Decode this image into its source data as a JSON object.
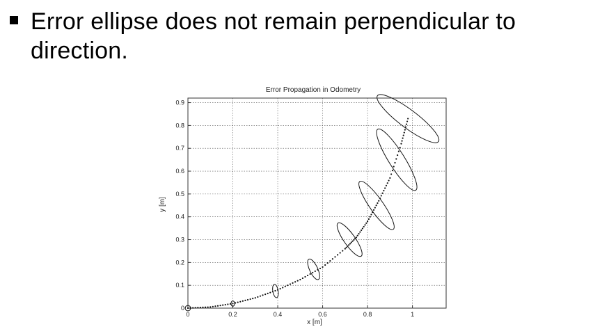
{
  "slide": {
    "bullet_text": "Error ellipse does not remain perpendicular to direction."
  },
  "chart_data": {
    "type": "scatter",
    "title": "Error Propagation in Odometry",
    "xlabel": "x [m]",
    "ylabel": "y [m]",
    "xlim": [
      0,
      1.15
    ],
    "ylim": [
      0,
      0.92
    ],
    "x_ticks": [
      0,
      0.2,
      0.4,
      0.6,
      0.8,
      1
    ],
    "x_tick_labels": [
      "0",
      "0.2",
      "0.4",
      "0.6",
      "0.8",
      "1"
    ],
    "y_ticks": [
      0,
      0.1,
      0.2,
      0.3,
      0.4,
      0.5,
      0.6,
      0.7,
      0.8,
      0.9
    ],
    "y_tick_labels": [
      "0",
      "0.1",
      "0.2",
      "0.3",
      "0.4",
      "0.5",
      "0.6",
      "0.7",
      "0.8",
      "0.9"
    ],
    "grid": true,
    "trajectory": {
      "x": [
        0,
        0.1,
        0.2,
        0.3,
        0.4,
        0.5,
        0.6,
        0.7,
        0.75,
        0.8,
        0.85,
        0.9,
        0.95,
        0.98
      ],
      "y": [
        0,
        0.005,
        0.02,
        0.045,
        0.08,
        0.125,
        0.18,
        0.26,
        0.31,
        0.38,
        0.47,
        0.57,
        0.72,
        0.83
      ]
    },
    "ellipses": [
      {
        "x": 0,
        "y": 0,
        "major": 0.012,
        "minor": 0.012,
        "angle_deg": 0
      },
      {
        "x": 0.2,
        "y": 0.02,
        "major": 0.012,
        "minor": 0.008,
        "angle_deg": 90
      },
      {
        "x": 0.39,
        "y": 0.075,
        "major": 0.03,
        "minor": 0.012,
        "angle_deg": 100
      },
      {
        "x": 0.56,
        "y": 0.17,
        "major": 0.05,
        "minor": 0.018,
        "angle_deg": 115
      },
      {
        "x": 0.72,
        "y": 0.3,
        "major": 0.09,
        "minor": 0.025,
        "angle_deg": 125
      },
      {
        "x": 0.84,
        "y": 0.45,
        "major": 0.13,
        "minor": 0.03,
        "angle_deg": 125
      },
      {
        "x": 0.93,
        "y": 0.65,
        "major": 0.16,
        "minor": 0.035,
        "angle_deg": 122
      },
      {
        "x": 0.98,
        "y": 0.83,
        "major": 0.17,
        "minor": 0.04,
        "angle_deg": 143
      }
    ]
  }
}
